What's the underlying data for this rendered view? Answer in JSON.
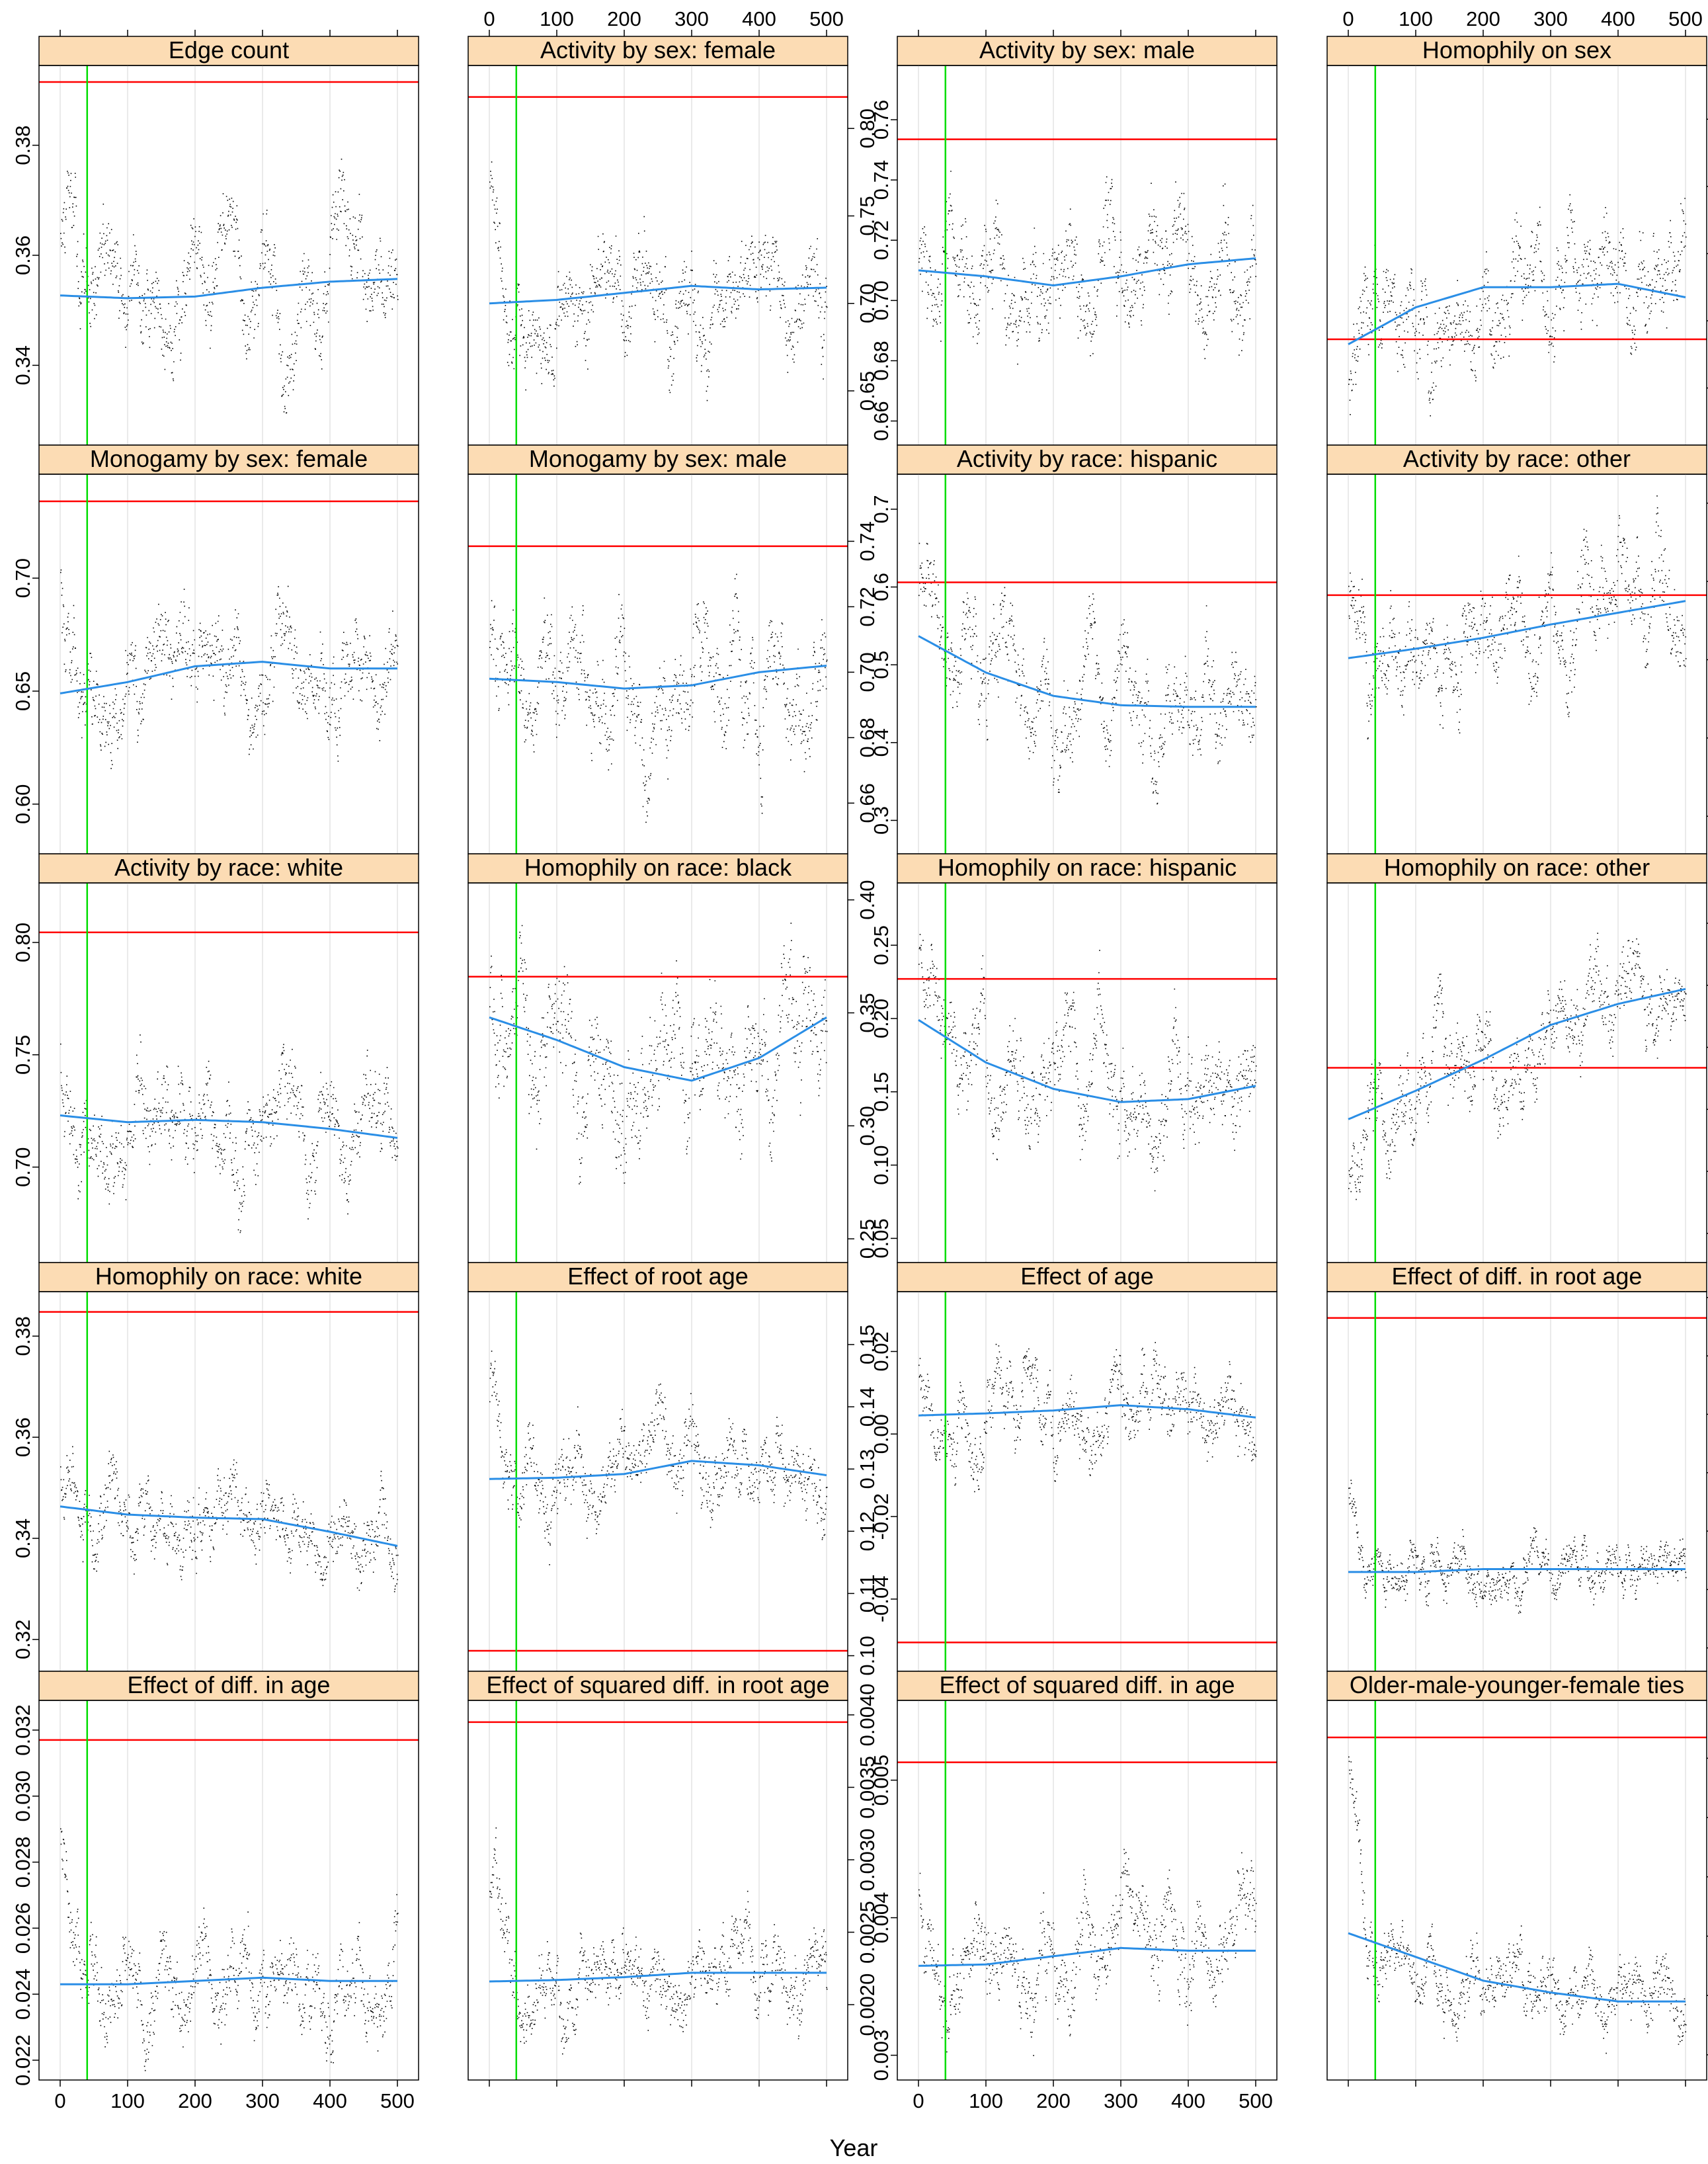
{
  "xlabel": "Year",
  "colors": {
    "strip_bg": "#fcdcb4",
    "target_line": "#ff0000",
    "burnin_line": "#00dd00",
    "smooth_line": "#2a8ee6",
    "points": "#000000",
    "grid": "#e4e4e4"
  },
  "chart_data": [
    {
      "title": "Edge count",
      "type": "scatter",
      "xlim": [
        0,
        500
      ],
      "ylim": [
        0.3255,
        0.3945
      ],
      "yticks": [
        0.34,
        0.36,
        0.38
      ],
      "target": 0.3915,
      "burnin": 40,
      "smooth": [
        0.3527,
        0.3522,
        0.3525,
        0.3541,
        0.3552,
        0.3557
      ],
      "noise": 0.009,
      "start": 0.366
    },
    {
      "title": "Activity by sex: female",
      "type": "scatter",
      "xlim": [
        0,
        500
      ],
      "ylim": [
        0.619,
        0.836
      ],
      "yticks": [
        0.65,
        0.7,
        0.75,
        0.8
      ],
      "target": 0.818,
      "burnin": 40,
      "smooth": [
        0.7,
        0.702,
        0.706,
        0.71,
        0.708,
        0.709
      ],
      "noise": 0.028,
      "start": 0.75
    },
    {
      "title": "Activity by sex: male",
      "type": "scatter",
      "xlim": [
        0,
        500
      ],
      "ylim": [
        0.652,
        0.778
      ],
      "yticks": [
        0.66,
        0.68,
        0.7,
        0.72,
        0.74,
        0.76
      ],
      "target": 0.7535,
      "burnin": 40,
      "smooth": [
        0.71,
        0.708,
        0.705,
        0.708,
        0.712,
        0.714
      ],
      "noise": 0.018,
      "start": 0.72
    },
    {
      "title": "Homophily on sex",
      "type": "scatter",
      "xlim": [
        0,
        500
      ],
      "ylim": [
        0.0003,
        0.0116
      ],
      "yticks": [
        0.002,
        0.004,
        0.006,
        0.008,
        0.01
      ],
      "target": 0.00345,
      "burnin": 40,
      "smooth": [
        0.0033,
        0.0044,
        0.005,
        0.005,
        0.0051,
        0.0047
      ],
      "noise": 0.0016,
      "start": 0.0025
    },
    {
      "title": "Monogamy by sex: female",
      "type": "scatter",
      "xlim": [
        0,
        500
      ],
      "ylim": [
        0.578,
        0.746
      ],
      "yticks": [
        0.6,
        0.65,
        0.7
      ],
      "target": 0.734,
      "burnin": 40,
      "smooth": [
        0.649,
        0.654,
        0.661,
        0.663,
        0.66,
        0.66
      ],
      "noise": 0.022,
      "start": 0.7
    },
    {
      "title": "Monogamy by sex: male",
      "type": "scatter",
      "xlim": [
        0,
        500
      ],
      "ylim": [
        0.6445,
        0.7605
      ],
      "yticks": [
        0.66,
        0.68,
        0.7,
        0.72,
        0.74
      ],
      "target": 0.7385,
      "burnin": 40,
      "smooth": [
        0.698,
        0.697,
        0.695,
        0.696,
        0.7,
        0.702
      ],
      "noise": 0.017,
      "start": 0.71
    },
    {
      "title": "Activity by race: hispanic",
      "type": "scatter",
      "xlim": [
        0,
        500
      ],
      "ylim": [
        0.257,
        0.745
      ],
      "yticks": [
        0.3,
        0.4,
        0.5,
        0.6,
        0.7
      ],
      "target": 0.606,
      "burnin": 40,
      "smooth": [
        0.537,
        0.49,
        0.46,
        0.448,
        0.446,
        0.446
      ],
      "noise": 0.065,
      "start": 0.62
    },
    {
      "title": "Activity by race: other",
      "type": "scatter",
      "xlim": [
        0,
        500
      ],
      "ylim": [
        0.552,
        1.037
      ],
      "yticks": [
        0.6,
        0.7,
        0.8,
        0.9,
        1.0
      ],
      "target": 0.8825,
      "burnin": 40,
      "smooth": [
        0.802,
        0.814,
        0.828,
        0.845,
        0.86,
        0.875
      ],
      "noise": 0.065,
      "start": 0.85
    },
    {
      "title": "Activity by race: white",
      "type": "scatter",
      "xlim": [
        0,
        500
      ],
      "ylim": [
        0.6575,
        0.8265
      ],
      "yticks": [
        0.7,
        0.75,
        0.8
      ],
      "target": 0.8045,
      "burnin": 40,
      "smooth": [
        0.723,
        0.72,
        0.721,
        0.72,
        0.717,
        0.713
      ],
      "noise": 0.021,
      "start": 0.74
    },
    {
      "title": "Homophily on race: black",
      "type": "scatter",
      "xlim": [
        0,
        500
      ],
      "ylim": [
        0.2395,
        0.4075
      ],
      "yticks": [
        0.25,
        0.3,
        0.35,
        0.4
      ],
      "target": 0.366,
      "burnin": 40,
      "smooth": [
        0.348,
        0.338,
        0.326,
        0.32,
        0.33,
        0.348
      ],
      "noise": 0.028,
      "start": 0.36
    },
    {
      "title": "Homophily on race: hispanic",
      "type": "scatter",
      "xlim": [
        0,
        500
      ],
      "ylim": [
        0.0335,
        0.2925
      ],
      "yticks": [
        0.05,
        0.1,
        0.15,
        0.2,
        0.25
      ],
      "target": 0.227,
      "burnin": 40,
      "smooth": [
        0.199,
        0.17,
        0.152,
        0.143,
        0.145,
        0.154
      ],
      "noise": 0.035,
      "start": 0.23
    },
    {
      "title": "Homophily on race: other",
      "type": "scatter",
      "xlim": [
        0,
        500
      ],
      "ylim": [
        0.0765,
        0.3825
      ],
      "yticks": [
        0.1,
        0.15,
        0.2,
        0.25,
        0.3,
        0.35
      ],
      "target": 0.2335,
      "burnin": 40,
      "smooth": [
        0.192,
        0.215,
        0.24,
        0.268,
        0.285,
        0.297
      ],
      "noise": 0.035,
      "start": 0.16
    },
    {
      "title": "Homophily on race: white",
      "type": "scatter",
      "xlim": [
        0,
        500
      ],
      "ylim": [
        0.3137,
        0.3888
      ],
      "yticks": [
        0.32,
        0.34,
        0.36,
        0.38
      ],
      "target": 0.3848,
      "burnin": 40,
      "smooth": [
        0.3463,
        0.3447,
        0.3441,
        0.3438,
        0.3413,
        0.3385
      ],
      "noise": 0.008,
      "start": 0.358
    },
    {
      "title": "Effect of root age",
      "type": "scatter",
      "xlim": [
        0,
        500
      ],
      "ylim": [
        0.0975,
        0.1585
      ],
      "yticks": [
        0.1,
        0.11,
        0.12,
        0.13,
        0.14,
        0.15
      ],
      "target": 0.1008,
      "burnin": 40,
      "smooth": [
        0.1284,
        0.1286,
        0.1292,
        0.1313,
        0.1306,
        0.129
      ],
      "noise": 0.0065,
      "start": 0.142
    },
    {
      "title": "Effect of age",
      "type": "scatter",
      "xlim": [
        0,
        500
      ],
      "ylim": [
        -0.0575,
        0.0345
      ],
      "yticks": [
        -0.04,
        -0.02,
        0.0,
        0.02
      ],
      "target": -0.0505,
      "burnin": 40,
      "smooth": [
        0.0045,
        0.005,
        0.0057,
        0.007,
        0.006,
        0.004
      ],
      "noise": 0.009,
      "start": 0.015
    },
    {
      "title": "Effect of diff. in root age",
      "type": "scatter",
      "xlim": [
        0,
        500
      ],
      "ylim": [
        0.0152,
        0.0282
      ],
      "yticks": [
        0.016,
        0.018,
        0.02,
        0.022,
        0.024,
        0.026,
        0.028
      ],
      "target": 0.0273,
      "burnin": 40,
      "smooth": [
        0.0186,
        0.0186,
        0.0187,
        0.0187,
        0.0187,
        0.0187
      ],
      "noise": 0.0009,
      "start": 0.0215
    },
    {
      "title": "Effect of diff. in age",
      "type": "scatter",
      "xlim": [
        0,
        500
      ],
      "ylim": [
        0.0214,
        0.0329
      ],
      "yticks": [
        0.022,
        0.024,
        0.026,
        0.028,
        0.03,
        0.032
      ],
      "target": 0.0317,
      "burnin": 40,
      "smooth": [
        0.0243,
        0.0243,
        0.0244,
        0.0245,
        0.0244,
        0.0244
      ],
      "noise": 0.0013,
      "start": 0.0285
    },
    {
      "title": "Effect of squared diff. in root age",
      "type": "scatter",
      "xlim": [
        0,
        500
      ],
      "ylim": [
        0.00148,
        0.0041
      ],
      "yticks": [
        0.002,
        0.0025,
        0.003,
        0.0035,
        0.004
      ],
      "target": 0.00395,
      "burnin": 40,
      "smooth": [
        0.00216,
        0.00217,
        0.00219,
        0.00222,
        0.00222,
        0.00222
      ],
      "noise": 0.00025,
      "start": 0.0029
    },
    {
      "title": "Effect of squared diff. in age",
      "type": "scatter",
      "xlim": [
        0,
        500
      ],
      "ylim": [
        0.00282,
        0.00558
      ],
      "yticks": [
        0.003,
        0.004,
        0.005
      ],
      "target": 0.00513,
      "burnin": 40,
      "smooth": [
        0.00365,
        0.00366,
        0.00372,
        0.00378,
        0.00376,
        0.00376
      ],
      "noise": 0.00035,
      "start": 0.0044
    },
    {
      "title": "Older-male-younger-female ties",
      "type": "scatter",
      "xlim": [
        0,
        500
      ],
      "ylim": [
        0.1315,
        0.2595
      ],
      "yticks": [
        0.14,
        0.16,
        0.18,
        0.2,
        0.22,
        0.24
      ],
      "target": 0.247,
      "burnin": 40,
      "smooth": [
        0.181,
        0.173,
        0.165,
        0.161,
        0.158,
        0.158
      ],
      "noise": 0.011,
      "start": 0.235
    }
  ],
  "xticks": [
    0,
    100,
    200,
    300,
    400,
    500
  ]
}
